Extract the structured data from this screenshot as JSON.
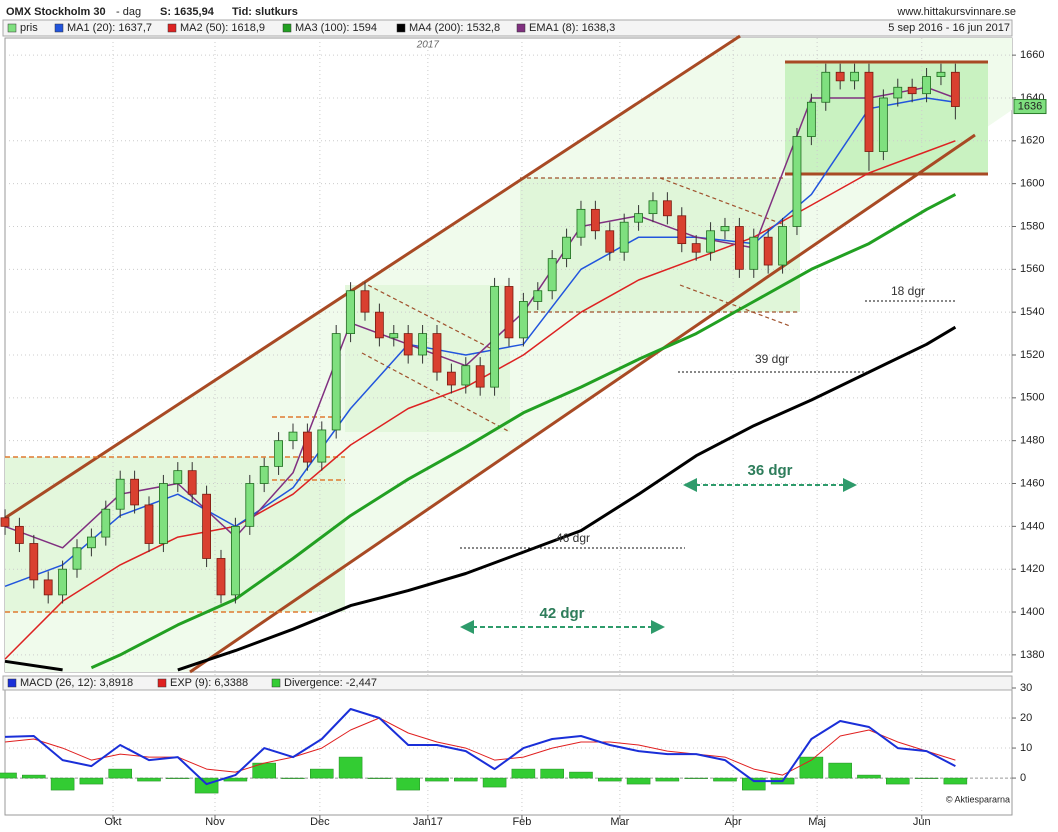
{
  "chart_data": [
    {
      "type": "candlestick",
      "title": "OMX Stockholm 30",
      "subtitle": "- dag",
      "last": "S: 1635,94",
      "mode": "Tid: slutkurs",
      "source": "www.hittakursvinnare.se",
      "date_range": "5 sep 2016 - 16 jun 2017",
      "year_marker": "2017",
      "last_price": 1636,
      "annotations": [
        "18 dgr",
        "39 dgr",
        "46 dgr",
        "36 dgr",
        "42 dgr"
      ],
      "xlim": [
        0,
        209.8
      ],
      "xticks": [
        {
          "value": 22.5,
          "label": "Okt"
        },
        {
          "value": 43.75,
          "label": "Nov"
        },
        {
          "value": 65.6,
          "label": "Dec"
        },
        {
          "value": 88.1,
          "label": "Jan17"
        },
        {
          "value": 107.7,
          "label": "Feb"
        },
        {
          "value": 128.1,
          "label": "Mar"
        },
        {
          "value": 151.7,
          "label": "Apr"
        },
        {
          "value": 169.2,
          "label": "Maj"
        },
        {
          "value": 191,
          "label": "Jun"
        }
      ],
      "ylim": [
        1372,
        1668
      ],
      "yticks": [
        1380,
        1400,
        1420,
        1440,
        1460,
        1480,
        1500,
        1520,
        1540,
        1560,
        1580,
        1600,
        1620,
        1640,
        1660
      ],
      "grid": true,
      "candles": {
        "name": "pris",
        "color": "#7fe07f",
        "down_color": "#d94030",
        "x": [
          0,
          3,
          6,
          9,
          12,
          15,
          18,
          21,
          24,
          27,
          30,
          33,
          36,
          39,
          42,
          45,
          48,
          51,
          54,
          57,
          60,
          63,
          66,
          69,
          72,
          75,
          78,
          81,
          84,
          87,
          90,
          93,
          96,
          99,
          102,
          105,
          108,
          111,
          114,
          117,
          120,
          123,
          126,
          129,
          132,
          135,
          138,
          141,
          144,
          147,
          150,
          153,
          156,
          159,
          162,
          165,
          168,
          171,
          174,
          177,
          180,
          183,
          186,
          189,
          192,
          195,
          198
        ],
        "open": [
          1444,
          1440,
          1432,
          1415,
          1408,
          1420,
          1430,
          1435,
          1448,
          1462,
          1450,
          1432,
          1460,
          1466,
          1455,
          1425,
          1408,
          1440,
          1460,
          1468,
          1480,
          1484,
          1470,
          1485,
          1530,
          1550,
          1540,
          1528,
          1530,
          1520,
          1530,
          1512,
          1506,
          1515,
          1505,
          1552,
          1528,
          1545,
          1550,
          1565,
          1575,
          1588,
          1578,
          1568,
          1582,
          1586,
          1592,
          1585,
          1572,
          1568,
          1578,
          1580,
          1560,
          1575,
          1562,
          1580,
          1622,
          1638,
          1652,
          1648,
          1652,
          1615,
          1640,
          1645,
          1642,
          1650,
          1652
        ],
        "high": [
          1448,
          1444,
          1436,
          1419,
          1424,
          1434,
          1439,
          1452,
          1466,
          1466,
          1454,
          1464,
          1470,
          1470,
          1459,
          1429,
          1444,
          1464,
          1472,
          1484,
          1488,
          1488,
          1489,
          1534,
          1554,
          1554,
          1544,
          1534,
          1534,
          1534,
          1534,
          1516,
          1519,
          1519,
          1556,
          1556,
          1549,
          1554,
          1569,
          1579,
          1592,
          1592,
          1582,
          1586,
          1590,
          1596,
          1596,
          1589,
          1576,
          1582,
          1584,
          1584,
          1579,
          1579,
          1584,
          1626,
          1642,
          1656,
          1656,
          1656,
          1656,
          1644,
          1649,
          1649,
          1654,
          1656,
          1656
        ],
        "low": [
          1436,
          1428,
          1411,
          1404,
          1404,
          1416,
          1426,
          1431,
          1444,
          1446,
          1428,
          1428,
          1456,
          1451,
          1421,
          1404,
          1404,
          1436,
          1456,
          1464,
          1476,
          1466,
          1466,
          1481,
          1526,
          1536,
          1524,
          1524,
          1516,
          1516,
          1508,
          1502,
          1502,
          1501,
          1501,
          1524,
          1524,
          1541,
          1546,
          1561,
          1571,
          1574,
          1564,
          1564,
          1578,
          1582,
          1581,
          1568,
          1564,
          1564,
          1574,
          1556,
          1556,
          1558,
          1558,
          1576,
          1618,
          1634,
          1644,
          1644,
          1606,
          1611,
          1636,
          1638,
          1638,
          1646,
          1630
        ],
        "close": [
          1440,
          1432,
          1415,
          1408,
          1420,
          1430,
          1435,
          1448,
          1462,
          1450,
          1432,
          1460,
          1466,
          1455,
          1425,
          1408,
          1440,
          1460,
          1468,
          1480,
          1484,
          1470,
          1485,
          1530,
          1550,
          1540,
          1528,
          1530,
          1520,
          1530,
          1512,
          1506,
          1515,
          1505,
          1552,
          1528,
          1545,
          1550,
          1565,
          1575,
          1588,
          1578,
          1568,
          1582,
          1586,
          1592,
          1585,
          1572,
          1568,
          1578,
          1580,
          1560,
          1575,
          1562,
          1580,
          1622,
          1638,
          1652,
          1648,
          1652,
          1615,
          1640,
          1645,
          1642,
          1650,
          1652,
          1636
        ]
      },
      "series": [
        {
          "name": "MA1 (20): 1637,7",
          "color": "#2255dd",
          "x": [
            0,
            12,
            24,
            36,
            48,
            60,
            72,
            84,
            96,
            108,
            120,
            132,
            144,
            156,
            168,
            180,
            192,
            198
          ],
          "values": [
            1412,
            1422,
            1445,
            1455,
            1440,
            1458,
            1495,
            1525,
            1520,
            1525,
            1560,
            1575,
            1575,
            1572,
            1595,
            1635,
            1640,
            1638
          ]
        },
        {
          "name": "MA2 (50): 1618,9",
          "color": "#dd2222",
          "x": [
            0,
            12,
            24,
            36,
            48,
            60,
            72,
            84,
            96,
            108,
            120,
            132,
            144,
            156,
            168,
            180,
            192,
            198
          ],
          "values": [
            1378,
            1405,
            1422,
            1435,
            1440,
            1455,
            1478,
            1495,
            1505,
            1520,
            1540,
            1555,
            1565,
            1575,
            1590,
            1605,
            1615,
            1620
          ]
        },
        {
          "name": "MA3 (100): 1594",
          "color": "#22a022",
          "x": [
            18,
            24,
            36,
            48,
            60,
            72,
            84,
            96,
            108,
            120,
            132,
            144,
            156,
            168,
            180,
            192,
            198
          ],
          "values": [
            1374,
            1380,
            1394,
            1406,
            1425,
            1445,
            1462,
            1477,
            1493,
            1505,
            1518,
            1530,
            1545,
            1560,
            1572,
            1588,
            1595
          ]
        },
        {
          "name": "MA4 (200): 1532,8",
          "color": "#000000",
          "x": [
            0,
            12,
            24,
            36,
            48,
            60,
            72,
            84,
            96,
            108,
            120,
            132,
            144,
            156,
            168,
            180,
            192,
            198
          ],
          "values": [
            1377,
            1373,
            null,
            1373,
            1382,
            1392,
            1403,
            1410,
            1418,
            1428,
            1438,
            1455,
            1473,
            1487,
            1499,
            1512,
            1525,
            1533
          ]
        },
        {
          "name": "EMA1 (8): 1638,3",
          "color": "#803080",
          "x": [
            0,
            12,
            24,
            36,
            48,
            60,
            72,
            84,
            96,
            108,
            120,
            132,
            144,
            156,
            168,
            180,
            192,
            198
          ],
          "values": [
            1440,
            1430,
            1455,
            1460,
            1435,
            1465,
            1535,
            1525,
            1515,
            1540,
            1580,
            1585,
            1575,
            1570,
            1640,
            1640,
            1645,
            1640
          ]
        }
      ]
    },
    {
      "type": "macd",
      "copyright": "© Aktiespararna",
      "xlim": [
        0,
        209.8
      ],
      "ylim": [
        -12.3,
        34
      ],
      "yticks": [
        0,
        10,
        20,
        30
      ],
      "series": [
        {
          "name": "MACD (26, 12): 3,8918",
          "color": "#1a2fd8",
          "x": [
            0,
            6,
            12,
            18,
            24,
            30,
            36,
            42,
            48,
            54,
            60,
            66,
            72,
            78,
            84,
            90,
            96,
            102,
            108,
            114,
            120,
            126,
            132,
            138,
            144,
            150,
            156,
            162,
            168,
            174,
            180,
            186,
            192,
            198
          ],
          "values": [
            13.7,
            14,
            6,
            4,
            11,
            6,
            7,
            -2,
            1,
            10,
            7,
            13,
            23,
            20,
            11,
            11,
            9,
            3,
            10,
            13,
            14,
            11,
            9,
            8,
            8,
            6,
            -1,
            -1,
            13,
            19,
            17,
            10,
            9,
            4
          ]
        },
        {
          "name": "EXP (9): 6,3388",
          "color": "#e02020",
          "x": [
            0,
            6,
            12,
            18,
            24,
            30,
            36,
            42,
            48,
            54,
            60,
            66,
            72,
            78,
            84,
            90,
            96,
            102,
            108,
            114,
            120,
            126,
            132,
            138,
            144,
            150,
            156,
            162,
            168,
            174,
            180,
            186,
            192,
            198
          ],
          "values": [
            12,
            13,
            10,
            6,
            8,
            7,
            7,
            3,
            2,
            5,
            7,
            10,
            16,
            20,
            15,
            12,
            10,
            6,
            7,
            10,
            12,
            12,
            11,
            9,
            8,
            7,
            3,
            1,
            6,
            14,
            16,
            12,
            9,
            6
          ]
        }
      ],
      "divergence": {
        "name": "Divergence: -2,447",
        "color": "#33cc33",
        "x": [
          0,
          6,
          12,
          18,
          24,
          30,
          36,
          42,
          48,
          54,
          60,
          66,
          72,
          78,
          84,
          90,
          96,
          102,
          108,
          114,
          120,
          126,
          132,
          138,
          144,
          150,
          156,
          162,
          168,
          174,
          180,
          186,
          192,
          198
        ],
        "values": [
          1.7,
          1,
          -4,
          -2,
          3,
          -1,
          0,
          -5,
          -1,
          5,
          0,
          3,
          7,
          0,
          -4,
          -1,
          -1,
          -3,
          3,
          3,
          2,
          -1,
          -2,
          -1,
          0,
          -1,
          -4,
          -2,
          7,
          5,
          1,
          -2,
          0,
          -2
        ]
      }
    }
  ]
}
